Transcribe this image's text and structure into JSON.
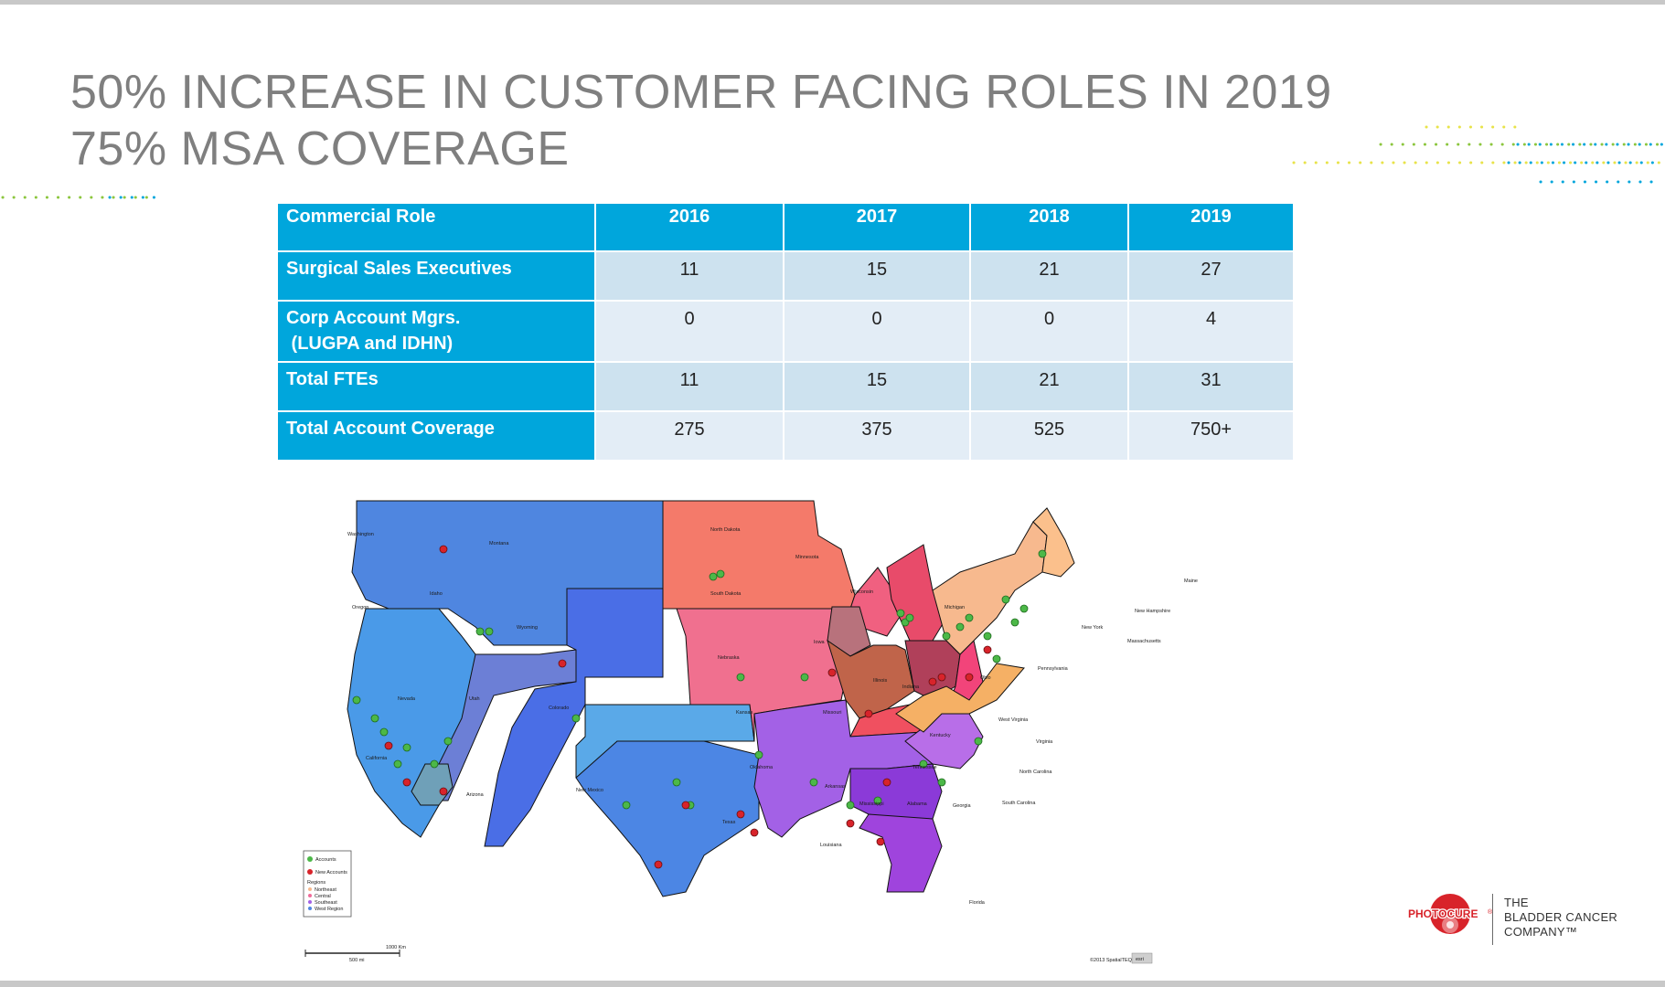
{
  "slide": {
    "title_line1": "50% INCREASE IN CUSTOMER FACING ROLES IN 2019",
    "title_line2": "75% MSA COVERAGE"
  },
  "table": {
    "headers": [
      "Commercial Role",
      "2016",
      "2017",
      "2018",
      "2019"
    ],
    "rows": [
      {
        "role": "Surgical Sales Executives",
        "values": [
          "11",
          "15",
          "21",
          "27"
        ]
      },
      {
        "role": "Corp Account Mgrs.\n (LUGPA and IDHN)",
        "values": [
          "0",
          "0",
          "0",
          "4"
        ]
      },
      {
        "role": "Total FTEs",
        "values": [
          "11",
          "15",
          "21",
          "31"
        ]
      },
      {
        "role": "Total Account Coverage",
        "values": [
          "275",
          "375",
          "525",
          "750+"
        ]
      }
    ]
  },
  "map": {
    "state_labels": [
      "Washington",
      "Montana",
      "Idaho",
      "Oregon",
      "Wyoming",
      "Nevada",
      "Utah",
      "Colorado",
      "California",
      "Arizona",
      "New Mexico",
      "North Dakota",
      "South Dakota",
      "Minnesota",
      "Wisconsin",
      "Nebraska",
      "Iowa",
      "Kansas",
      "Missouri",
      "Oklahoma",
      "Texas",
      "Arkansas",
      "Louisiana",
      "Mississippi",
      "Alabama",
      "Georgia",
      "Florida",
      "Illinois",
      "Indiana",
      "Michigan",
      "Ohio",
      "Kentucky",
      "Tennessee",
      "West Virginia",
      "Virginia",
      "North Carolina",
      "South Carolina",
      "Pennsylvania",
      "New York",
      "Maine",
      "New Hampshire",
      "Massachusetts"
    ],
    "legend": {
      "accounts": "Accounts",
      "new_accounts": "New Accounts",
      "regions_title": "Regions",
      "regions": [
        "Northeast",
        "Central",
        "Southeast",
        "West Region"
      ]
    },
    "scale_km": "1000 Km",
    "scale_mi": "500 mi",
    "credit": "©2013 SpatialTEQ",
    "credit_badge": "esri",
    "colors": {
      "west": "#4f86e0",
      "central": "#f06a9a",
      "southeast": "#a361e6",
      "northeast": "#f7b98e",
      "account_pin": "#4cb848",
      "new_account_pin": "#d8232a"
    }
  },
  "branding": {
    "logo_text": "PHOTOCURE",
    "logo_reg": "®",
    "tagline_line1": "THE",
    "tagline_line2": "BLADDER CANCER",
    "tagline_line3": "COMPANY™",
    "accent": "#d8232a"
  },
  "theme": {
    "header_blue": "#00a6dc",
    "row_light": "#cde2ef",
    "row_lighter": "#e3edf6",
    "title_gray": "#7f7f7f"
  }
}
